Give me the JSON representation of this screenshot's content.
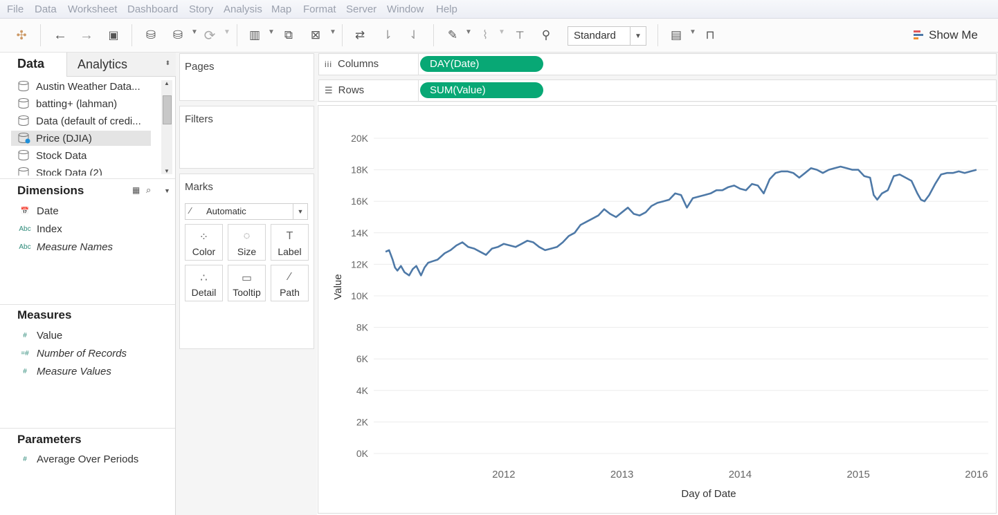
{
  "menu": [
    "File",
    "Data",
    "Worksheet",
    "Dashboard",
    "Story",
    "Analysis",
    "Map",
    "Format",
    "Server",
    "Window",
    "Help"
  ],
  "toolbar": {
    "view_size": "Standard",
    "show_me": "Show Me",
    "icons": [
      "tableau-logo-icon",
      "undo-icon",
      "redo-icon",
      "save-icon",
      "new-datasource-icon",
      "pause-updates-icon",
      "refresh-icon",
      "new-worksheet-icon",
      "duplicate-icon",
      "clear-sheet-icon",
      "swap-icon",
      "sort-ascending-icon",
      "sort-descending-icon",
      "highlight-icon",
      "group-icon",
      "labels-icon",
      "pin-icon",
      "chart-type-icon",
      "presentation-icon"
    ]
  },
  "left": {
    "tabs": {
      "data": "Data",
      "analytics": "Analytics"
    },
    "datasources": [
      {
        "label": "Austin Weather Data..."
      },
      {
        "label": "batting+ (lahman)"
      },
      {
        "label": "Data (default of credi..."
      },
      {
        "label": "Price (DJIA)"
      },
      {
        "label": "Stock Data"
      },
      {
        "label": "Stock Data (2)"
      }
    ],
    "dimensions_title": "Dimensions",
    "dimensions": [
      {
        "icon": "📅",
        "label": "Date",
        "italic": false
      },
      {
        "icon": "Abc",
        "label": "Index",
        "italic": false
      },
      {
        "icon": "Abc",
        "label": "Measure Names",
        "italic": true
      }
    ],
    "measures_title": "Measures",
    "measures": [
      {
        "icon": "#",
        "label": "Value",
        "italic": false
      },
      {
        "icon": "=#",
        "label": "Number of Records",
        "italic": true
      },
      {
        "icon": "#",
        "label": "Measure Values",
        "italic": true
      }
    ],
    "parameters_title": "Parameters",
    "parameters": [
      {
        "icon": "#",
        "label": "Average Over Periods",
        "italic": false
      }
    ]
  },
  "cards": {
    "pages": "Pages",
    "filters": "Filters",
    "marks": "Marks",
    "mark_type": "Automatic",
    "mark_buttons": [
      {
        "label": "Color",
        "icon": "⁘"
      },
      {
        "label": "Size",
        "icon": "◌"
      },
      {
        "label": "Label",
        "icon": "T"
      },
      {
        "label": "Detail",
        "icon": "∴"
      },
      {
        "label": "Tooltip",
        "icon": "▭"
      },
      {
        "label": "Path",
        "icon": "⁄"
      }
    ]
  },
  "shelves": {
    "columns_label": "Columns",
    "columns_pill": "DAY(Date)",
    "rows_label": "Rows",
    "rows_pill": "SUM(Value)"
  },
  "chart_data": {
    "type": "line",
    "xlabel": "Day of Date",
    "ylabel": "Value",
    "x_ticks": [
      "2012",
      "2013",
      "2014",
      "2015",
      "2016"
    ],
    "y_ticks": [
      "0K",
      "2K",
      "4K",
      "6K",
      "8K",
      "10K",
      "12K",
      "14K",
      "16K",
      "18K",
      "20K"
    ],
    "ylim": [
      0,
      21000
    ],
    "xlim": [
      2011.4,
      2016.6
    ],
    "grid": true,
    "color": "#4e79a7",
    "series": [
      {
        "x": [
          2011.5,
          2011.53,
          2011.56,
          2011.58,
          2011.6,
          2011.63,
          2011.66,
          2011.7,
          2011.73,
          2011.76,
          2011.8,
          2011.83,
          2011.86,
          2011.9,
          2011.94,
          2012.0,
          2012.05,
          2012.1,
          2012.15,
          2012.2,
          2012.25,
          2012.3,
          2012.35,
          2012.4,
          2012.45,
          2012.5,
          2012.55,
          2012.6,
          2012.65,
          2012.7,
          2012.75,
          2012.8,
          2012.85,
          2012.9,
          2012.95,
          2013.0,
          2013.05,
          2013.1,
          2013.15,
          2013.2,
          2013.25,
          2013.3,
          2013.35,
          2013.4,
          2013.45,
          2013.5,
          2013.55,
          2013.6,
          2013.65,
          2013.7,
          2013.75,
          2013.8,
          2013.85,
          2013.9,
          2013.95,
          2014.0,
          2014.05,
          2014.1,
          2014.15,
          2014.2,
          2014.25,
          2014.3,
          2014.35,
          2014.4,
          2014.45,
          2014.5,
          2014.55,
          2014.6,
          2014.65,
          2014.7,
          2014.75,
          2014.8,
          2014.85,
          2014.9,
          2014.95,
          2015.0,
          2015.05,
          2015.1,
          2015.15,
          2015.2,
          2015.25,
          2015.3,
          2015.35,
          2015.4,
          2015.45,
          2015.5,
          2015.55,
          2015.6,
          2015.63,
          2015.66,
          2015.7,
          2015.75,
          2015.8,
          2015.85,
          2015.9,
          2015.95,
          2016.0,
          2016.03,
          2016.06,
          2016.1,
          2016.15,
          2016.2,
          2016.25,
          2016.3,
          2016.35,
          2016.4,
          2016.45,
          2016.5
        ],
        "y": [
          12800,
          12900,
          12300,
          11800,
          11600,
          11900,
          11500,
          11300,
          11700,
          11900,
          11300,
          11800,
          12100,
          12200,
          12300,
          12700,
          12900,
          13200,
          13400,
          13100,
          13000,
          12800,
          12600,
          13000,
          13100,
          13300,
          13200,
          13100,
          13300,
          13500,
          13400,
          13100,
          12900,
          13000,
          13100,
          13400,
          13800,
          14000,
          14500,
          14700,
          14900,
          15100,
          15500,
          15200,
          15000,
          15300,
          15600,
          15200,
          15100,
          15300,
          15700,
          15900,
          16000,
          16100,
          16500,
          16400,
          15600,
          16200,
          16300,
          16400,
          16500,
          16700,
          16700,
          16900,
          17000,
          16800,
          16700,
          17100,
          17000,
          16500,
          17400,
          17800,
          17900,
          17900,
          17800,
          17500,
          17800,
          18100,
          18000,
          17800,
          18000,
          18100,
          18200,
          18100,
          18000,
          18000,
          17600,
          17500,
          16400,
          16100,
          16500,
          16700,
          17600,
          17700,
          17500,
          17300,
          16500,
          16100,
          16000,
          16400,
          17100,
          17700,
          17800,
          17800,
          17900,
          17800,
          17900,
          18000
        ]
      }
    ]
  }
}
